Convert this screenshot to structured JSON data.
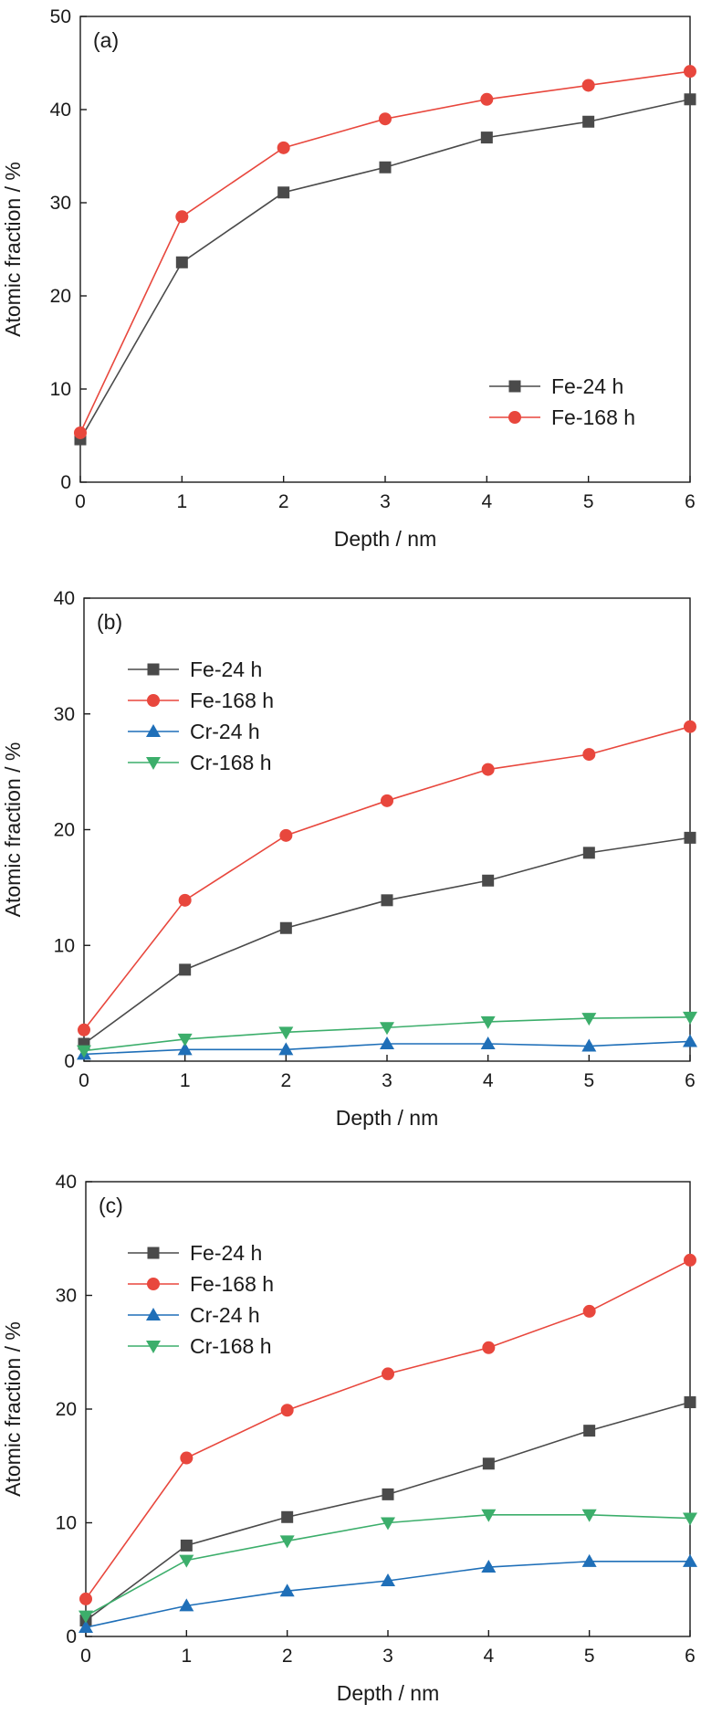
{
  "chart_data": [
    {
      "type": "line",
      "panel_label": "(a)",
      "xlabel": "Depth / nm",
      "ylabel": "Atomic fraction / %",
      "xlim": [
        0,
        6
      ],
      "ylim": [
        0,
        50
      ],
      "xticks": [
        0,
        1,
        2,
        3,
        4,
        5,
        6
      ],
      "yticks": [
        0,
        10,
        20,
        30,
        40,
        50
      ],
      "legend_position": "bottom-right",
      "x": [
        0,
        1,
        2,
        3,
        4,
        5,
        6
      ],
      "series": [
        {
          "name": "Fe-24 h",
          "color": "#4a4a4a",
          "marker": "square",
          "values": [
            4.6,
            23.6,
            31.1,
            33.8,
            37.0,
            38.7,
            41.1
          ]
        },
        {
          "name": "Fe-168 h",
          "color": "#e8473d",
          "marker": "circle",
          "values": [
            5.3,
            28.5,
            35.9,
            39.0,
            41.1,
            42.6,
            44.1
          ]
        }
      ]
    },
    {
      "type": "line",
      "panel_label": "(b)",
      "xlabel": "Depth / nm",
      "ylabel": "Atomic fraction / %",
      "xlim": [
        0,
        6
      ],
      "ylim": [
        0,
        40
      ],
      "xticks": [
        0,
        1,
        2,
        3,
        4,
        5,
        6
      ],
      "yticks": [
        0,
        10,
        20,
        30,
        40
      ],
      "legend_position": "top-left",
      "x": [
        0,
        1,
        2,
        3,
        4,
        5,
        6
      ],
      "series": [
        {
          "name": "Fe-24 h",
          "color": "#4a4a4a",
          "marker": "square",
          "values": [
            1.5,
            7.9,
            11.5,
            13.9,
            15.6,
            18.0,
            19.3
          ]
        },
        {
          "name": "Fe-168 h",
          "color": "#e8473d",
          "marker": "circle",
          "values": [
            2.7,
            13.9,
            19.5,
            22.5,
            25.2,
            26.5,
            28.9
          ]
        },
        {
          "name": "Cr-24 h",
          "color": "#1f6fb8",
          "marker": "triangle-up",
          "values": [
            0.6,
            1.0,
            1.0,
            1.5,
            1.5,
            1.3,
            1.7
          ]
        },
        {
          "name": "Cr-168 h",
          "color": "#3cae6b",
          "marker": "triangle-down",
          "values": [
            0.9,
            1.9,
            2.5,
            2.9,
            3.4,
            3.7,
            3.8
          ]
        }
      ]
    },
    {
      "type": "line",
      "panel_label": "(c)",
      "xlabel": "Depth / nm",
      "ylabel": "Atomic fraction / %",
      "xlim": [
        0,
        6
      ],
      "ylim": [
        0,
        40
      ],
      "xticks": [
        0,
        1,
        2,
        3,
        4,
        5,
        6
      ],
      "yticks": [
        0,
        10,
        20,
        30,
        40
      ],
      "legend_position": "top-left",
      "x": [
        0,
        1,
        2,
        3,
        4,
        5,
        6
      ],
      "series": [
        {
          "name": "Fe-24 h",
          "color": "#4a4a4a",
          "marker": "square",
          "values": [
            1.4,
            8.0,
            10.5,
            12.5,
            15.2,
            18.1,
            20.6
          ]
        },
        {
          "name": "Fe-168 h",
          "color": "#e8473d",
          "marker": "circle",
          "values": [
            3.3,
            15.7,
            19.9,
            23.1,
            25.4,
            28.6,
            33.1
          ]
        },
        {
          "name": "Cr-24 h",
          "color": "#1f6fb8",
          "marker": "triangle-up",
          "values": [
            0.8,
            2.7,
            4.0,
            4.9,
            6.1,
            6.6,
            6.6
          ]
        },
        {
          "name": "Cr-168 h",
          "color": "#3cae6b",
          "marker": "triangle-down",
          "values": [
            1.8,
            6.7,
            8.4,
            10.0,
            10.7,
            10.7,
            10.4
          ]
        }
      ]
    }
  ]
}
